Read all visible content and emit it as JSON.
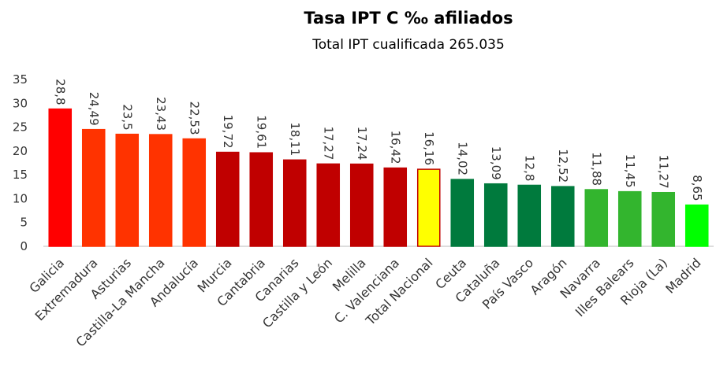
{
  "chart_data": {
    "type": "bar",
    "title": "Tasa IPT C ‰ afiliados",
    "subtitle": "Total IPT cualificada 265.035",
    "categories": [
      "Galicia",
      "Extremadura",
      "Asturias",
      "Castilla-La Mancha",
      "Andalucía",
      "Murcia",
      "Cantabria",
      "Canarias",
      "Castilla y León",
      "Melilla",
      "C. Valenciana",
      "Total Nacional",
      "Ceuta",
      "Cataluña",
      "País Vasco",
      "Aragón",
      "Navarra",
      "Illes Balears",
      "Rioja (La)",
      "Madrid"
    ],
    "values": [
      28.8,
      24.49,
      23.5,
      23.43,
      22.53,
      19.72,
      19.61,
      18.11,
      17.27,
      17.24,
      16.42,
      16.16,
      14.02,
      13.09,
      12.8,
      12.52,
      11.88,
      11.45,
      11.27,
      8.65
    ],
    "value_labels": [
      "28,8",
      "24,49",
      "23,5",
      "23,43",
      "22,53",
      "19,72",
      "19,61",
      "18,11",
      "17,27",
      "17,24",
      "16,42",
      "16,16",
      "14,02",
      "13,09",
      "12,8",
      "12,52",
      "11,88",
      "11,45",
      "11,27",
      "8,65"
    ],
    "colors": [
      "#ff0000",
      "#ff3300",
      "#ff3300",
      "#ff3300",
      "#ff3300",
      "#c00000",
      "#c00000",
      "#c00000",
      "#c00000",
      "#c00000",
      "#c00000",
      "#ffff00",
      "#007a3d",
      "#007a3d",
      "#007a3d",
      "#007a3d",
      "#33b52e",
      "#33b52e",
      "#33b52e",
      "#00ff00"
    ],
    "edgecolors": [
      "#ff0000",
      "#ff3300",
      "#ff3300",
      "#ff3300",
      "#ff3300",
      "#c00000",
      "#c00000",
      "#c00000",
      "#c00000",
      "#c00000",
      "#c00000",
      "#c00000",
      "#007a3d",
      "#007a3d",
      "#007a3d",
      "#007a3d",
      "#33b52e",
      "#33b52e",
      "#33b52e",
      "#00ff00"
    ],
    "ylim": [
      0,
      35
    ],
    "yticks": [
      0,
      5,
      10,
      15,
      20,
      25,
      30,
      35
    ],
    "grid": false
  }
}
